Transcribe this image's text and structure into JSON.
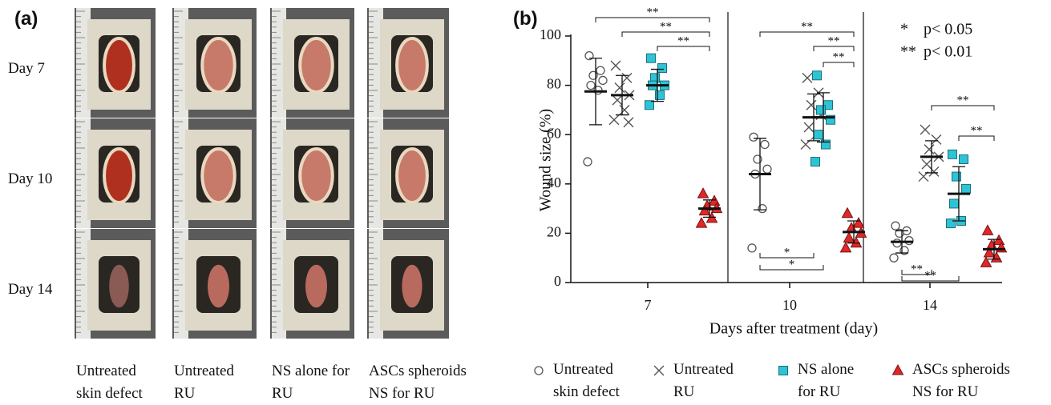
{
  "panel_a": {
    "label": "(a)",
    "rows": [
      "Day 7",
      "Day 10",
      "Day 14"
    ],
    "columns": [
      "Untreated skin defect",
      "Untreated RU",
      "NS alone for RU",
      "ASCs spheroids NS for RU"
    ]
  },
  "chart_data": {
    "type": "scatter",
    "label": "(b)",
    "y_label": "Wound size (%)",
    "x_label": "Days after treatment (day)",
    "categories": [
      "7",
      "10",
      "14"
    ],
    "ylim": [
      0,
      100
    ],
    "yticks": [
      0,
      20,
      40,
      60,
      80,
      100
    ],
    "series": [
      {
        "name": "Untreated skin defect",
        "marker": "circle",
        "color": "#ffffff",
        "values": [
          [
            92,
            86,
            84,
            82,
            80,
            78,
            49
          ],
          [
            59,
            56,
            50,
            46,
            44,
            30,
            14
          ],
          [
            23,
            21,
            20,
            17,
            16,
            13,
            10
          ]
        ],
        "mean": [
          77.5,
          44,
          16.5
        ],
        "sd": [
          13.5,
          14.5,
          4.5
        ]
      },
      {
        "name": "Untreated RU",
        "marker": "cross",
        "color": "#555555",
        "values": [
          [
            88,
            83,
            79,
            76,
            74,
            70,
            66,
            65
          ],
          [
            83,
            77,
            72,
            68,
            63,
            60,
            56
          ],
          [
            62,
            58,
            54,
            51,
            48,
            45,
            43
          ]
        ],
        "mean": [
          76,
          67,
          51
        ],
        "sd": [
          8,
          9.5,
          6.5
        ]
      },
      {
        "name": "NS alone for RU",
        "marker": "square",
        "color": "#2ec4d6",
        "values": [
          [
            91,
            87,
            83,
            80,
            80,
            76,
            72
          ],
          [
            84,
            72,
            70,
            66,
            60,
            56,
            49
          ],
          [
            52,
            50,
            43,
            38,
            32,
            25,
            24
          ]
        ],
        "mean": [
          80,
          67,
          36
        ],
        "sd": [
          6.5,
          10,
          11
        ]
      },
      {
        "name": "ASCs spheroids NS for RU",
        "marker": "triangle",
        "color": "#e02828",
        "values": [
          [
            36,
            33,
            31,
            30,
            29,
            26,
            24
          ],
          [
            28,
            24,
            22,
            20,
            18,
            16,
            14
          ],
          [
            21,
            17,
            15,
            14,
            12,
            10,
            8
          ]
        ],
        "mean": [
          30,
          20.5,
          13.5
        ],
        "sd": [
          3.5,
          4.5,
          4
        ]
      }
    ],
    "significance_labels": [
      "**",
      "**",
      "**",
      "**",
      "**",
      "**",
      "*",
      "*",
      "**",
      "**",
      "**",
      "**"
    ],
    "p_legend": [
      {
        "symbol": "*",
        "text": "p< 0.05"
      },
      {
        "symbol": "**",
        "text": "p< 0.01"
      }
    ]
  }
}
